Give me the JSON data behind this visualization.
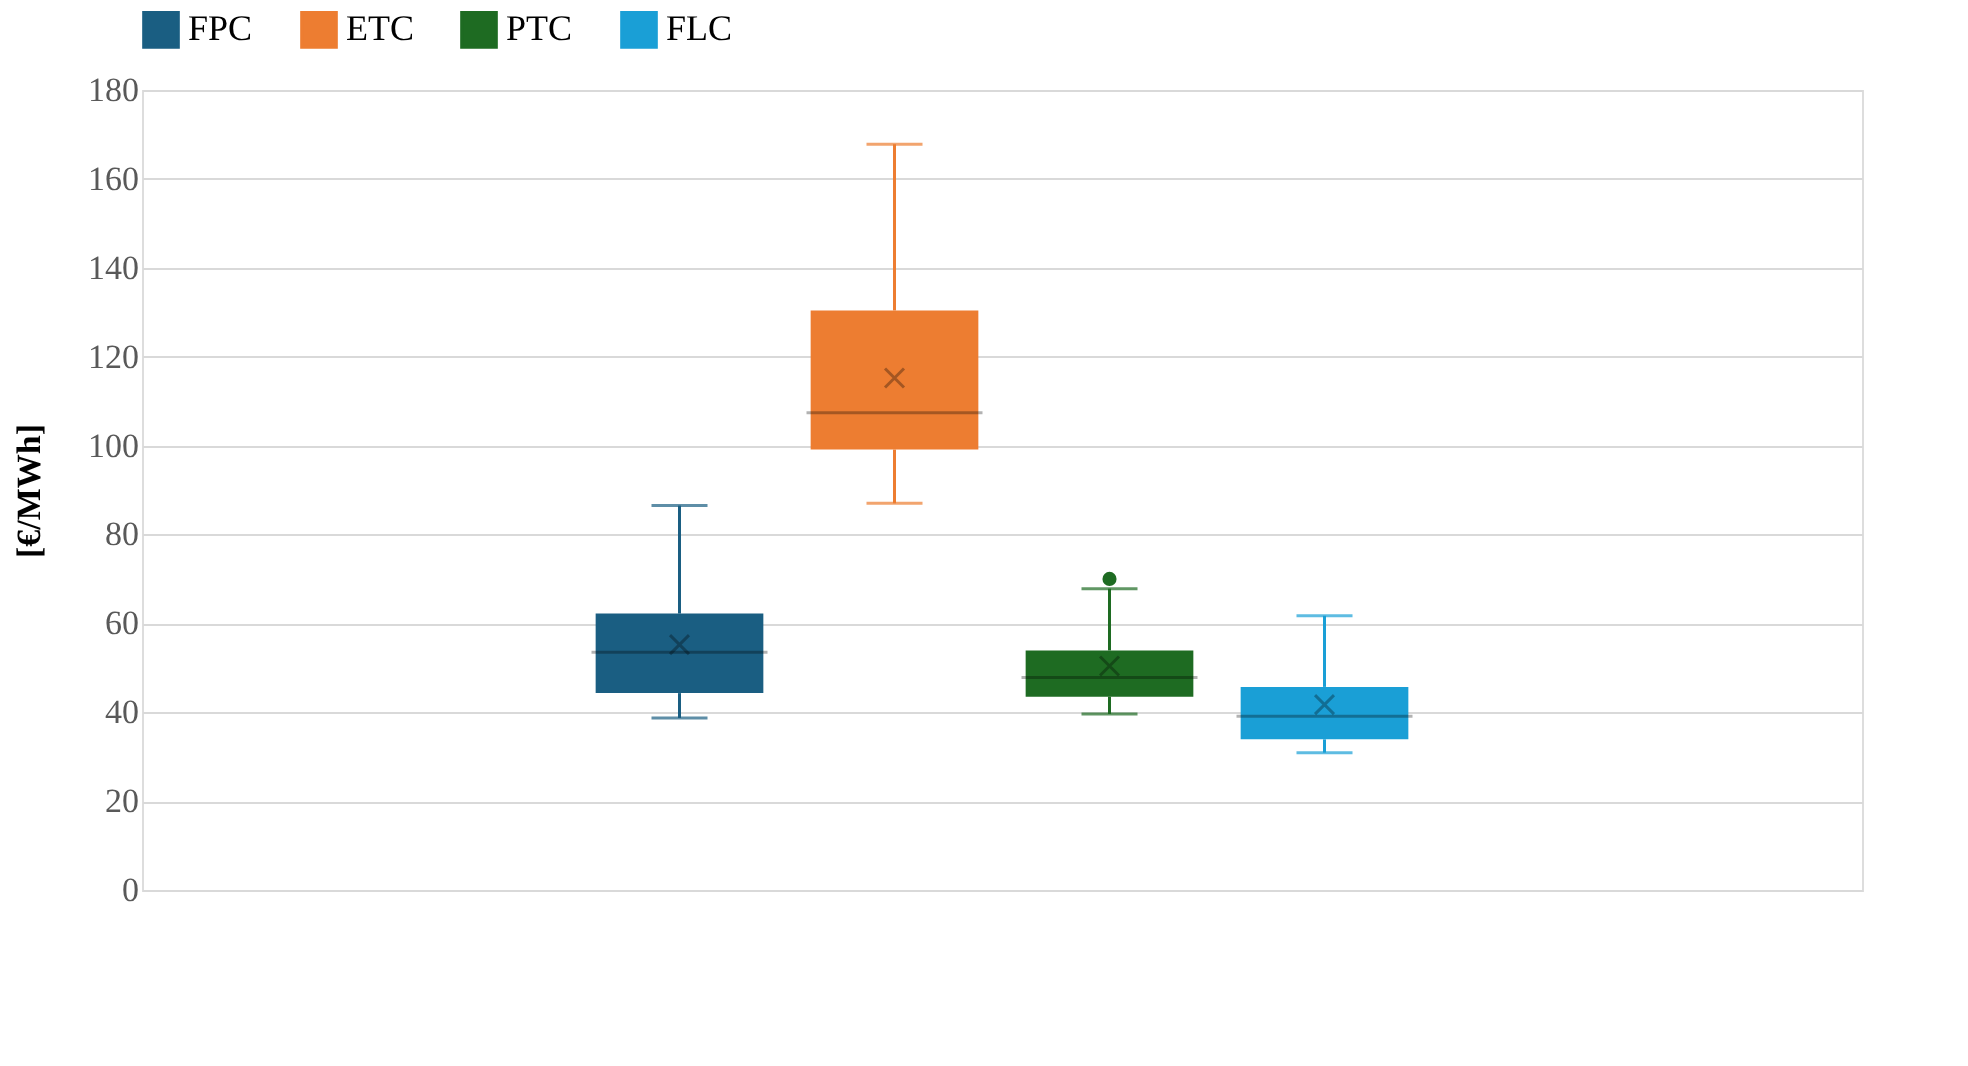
{
  "chart_data": {
    "type": "box",
    "ylabel": "[€/MWh]",
    "categories": [
      null
    ],
    "series": [
      {
        "name": "FPC",
        "color": "#1a5e82",
        "boxes": [
          {
            "low": 38.7,
            "q1": 44.3,
            "median": 53.5,
            "q3": 62.2,
            "high": 86.5,
            "mean": 55.2
          }
        ]
      },
      {
        "name": "ETC",
        "color": "#ed7d31",
        "boxes": [
          {
            "low": 87,
            "q1": 99.1,
            "median": 107.4,
            "q3": 130.4,
            "high": 167.8,
            "mean": 115.2
          }
        ]
      },
      {
        "name": "PTC",
        "color": "#1e6b22",
        "boxes": [
          {
            "low": 39.6,
            "q1": 43.5,
            "median": 47.8,
            "q3": 53.9,
            "high": 67.8,
            "mean": 50.4,
            "outliers": [
              70
            ]
          }
        ]
      },
      {
        "name": "FLC",
        "color": "#1a9fd6",
        "boxes": [
          {
            "low": 30.9,
            "q1": 33.9,
            "median": 39.1,
            "q3": 45.7,
            "high": 61.7,
            "mean": 41.7
          }
        ]
      }
    ],
    "ylim": [
      0,
      180
    ],
    "yticks": [
      0,
      20,
      40,
      60,
      80,
      100,
      120,
      140,
      160,
      180
    ],
    "grid": "y",
    "legend": "top",
    "tick_labels": "y"
  }
}
